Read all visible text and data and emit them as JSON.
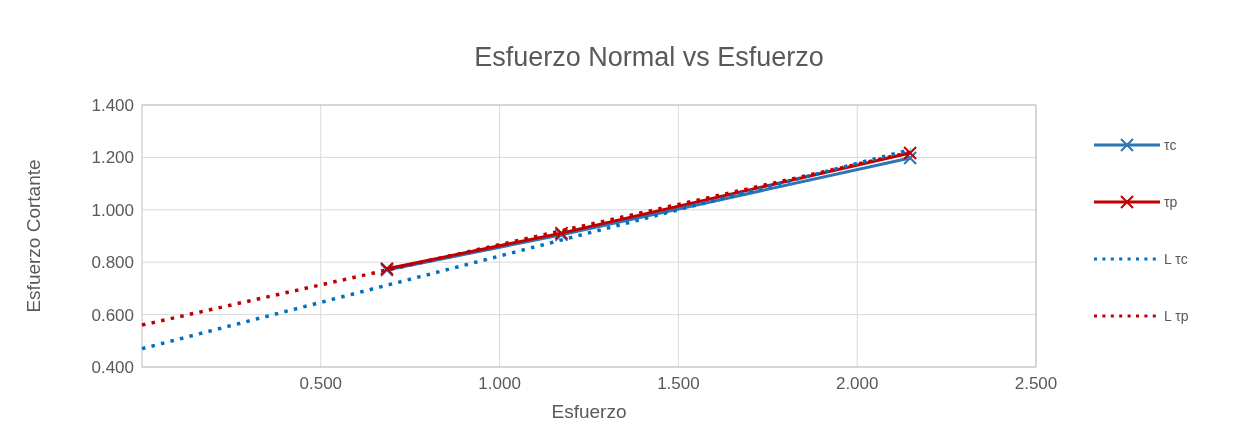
{
  "chart_data": {
    "type": "line",
    "title": "Esfuerzo Normal vs Esfuerzo",
    "xlabel": "Esfuerzo",
    "ylabel": "Esfuerzo Cortante",
    "xlim": [
      0,
      2.5
    ],
    "xticks": [
      {
        "value": 0.5,
        "label": "0.500"
      },
      {
        "value": 1,
        "label": "1.000"
      },
      {
        "value": 1.5,
        "label": "1.500"
      },
      {
        "value": 2,
        "label": "2.000"
      },
      {
        "value": 2.5,
        "label": "2.500"
      }
    ],
    "ylim": [
      0.4,
      1.4
    ],
    "yticks": [
      {
        "value": 0.4,
        "label": "0.400"
      },
      {
        "value": 0.6,
        "label": "0.600"
      },
      {
        "value": 0.8,
        "label": "0.800"
      },
      {
        "value": 1,
        "label": "1.000"
      },
      {
        "value": 1.2,
        "label": "1.200"
      },
      {
        "value": 1.4,
        "label": "1.400"
      }
    ],
    "grid": true,
    "legend": "right",
    "line_style": "solid",
    "series": [
      {
        "name": "τc",
        "color": "#2e75b6",
        "x": [
          0.685,
          1.173,
          2.148
        ],
        "values": [
          0.77,
          0.905,
          1.198
        ],
        "marker": "cross"
      },
      {
        "name": "τp",
        "color": "#c00000",
        "x": [
          0.685,
          1.173,
          2.148
        ],
        "values": [
          0.775,
          0.911,
          1.217
        ],
        "marker": "cross"
      },
      {
        "name": "L τc",
        "color": "#0070c0",
        "x": [
          0,
          2.15
        ],
        "values": [
          0.47,
          1.23
        ],
        "marker": "none",
        "line_style": "dotted"
      },
      {
        "name": "L τp",
        "color": "#c00000",
        "x": [
          0,
          2.15
        ],
        "values": [
          0.56,
          1.22
        ],
        "marker": "none",
        "line_style": "dotted"
      }
    ]
  }
}
